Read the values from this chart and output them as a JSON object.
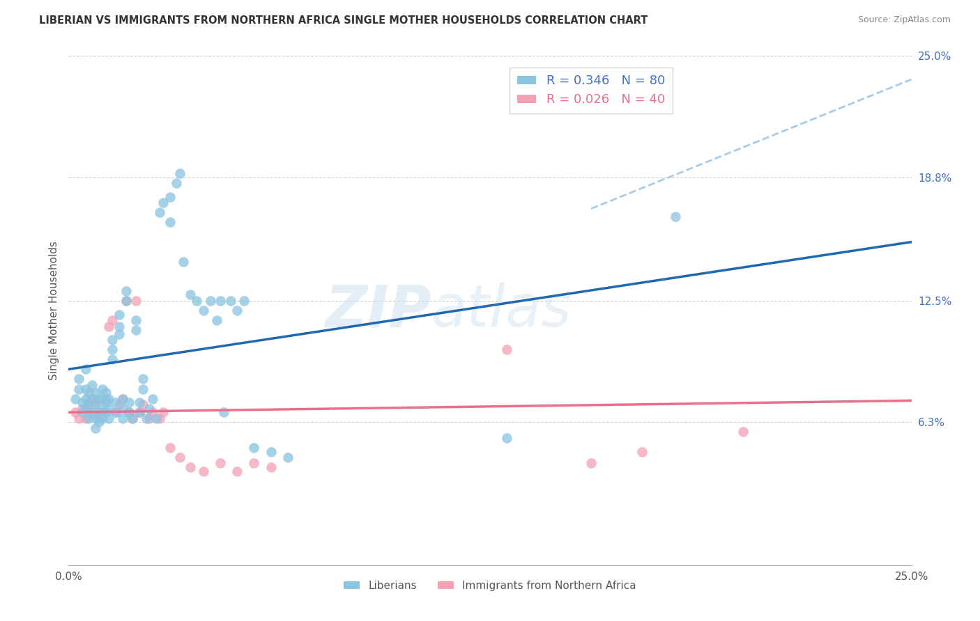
{
  "title": "LIBERIAN VS IMMIGRANTS FROM NORTHERN AFRICA SINGLE MOTHER HOUSEHOLDS CORRELATION CHART",
  "source": "Source: ZipAtlas.com",
  "ylabel": "Single Mother Households",
  "xlim": [
    0.0,
    0.25
  ],
  "ylim": [
    -0.01,
    0.25
  ],
  "ytick_labels": [
    "6.3%",
    "12.5%",
    "18.8%",
    "25.0%"
  ],
  "ytick_values": [
    0.063,
    0.125,
    0.188,
    0.25
  ],
  "legend_label_1": "R = 0.346   N = 80",
  "legend_label_2": "R = 0.026   N = 40",
  "legend_bottom_1": "Liberians",
  "legend_bottom_2": "Immigrants from Northern Africa",
  "color_blue": "#89c4e1",
  "color_pink": "#f4a0b5",
  "color_line_blue": "#2068b0",
  "color_line_pink": "#e8708a",
  "color_dashed": "#a8cce8",
  "watermark_zip": "ZIP",
  "watermark_atlas": "atlas",
  "bg_color": "#ffffff",
  "grid_color": "#cccccc",
  "blue_scatter_x": [
    0.002,
    0.003,
    0.003,
    0.004,
    0.004,
    0.005,
    0.005,
    0.005,
    0.005,
    0.006,
    0.006,
    0.006,
    0.007,
    0.007,
    0.007,
    0.008,
    0.008,
    0.008,
    0.008,
    0.009,
    0.009,
    0.009,
    0.01,
    0.01,
    0.01,
    0.01,
    0.011,
    0.011,
    0.011,
    0.012,
    0.012,
    0.012,
    0.013,
    0.013,
    0.013,
    0.014,
    0.014,
    0.015,
    0.015,
    0.015,
    0.016,
    0.016,
    0.016,
    0.017,
    0.017,
    0.018,
    0.018,
    0.019,
    0.02,
    0.02,
    0.021,
    0.021,
    0.022,
    0.022,
    0.023,
    0.024,
    0.025,
    0.026,
    0.027,
    0.028,
    0.03,
    0.03,
    0.032,
    0.033,
    0.034,
    0.036,
    0.038,
    0.04,
    0.042,
    0.044,
    0.045,
    0.046,
    0.048,
    0.05,
    0.052,
    0.055,
    0.06,
    0.065,
    0.13,
    0.18
  ],
  "blue_scatter_y": [
    0.075,
    0.08,
    0.085,
    0.068,
    0.073,
    0.07,
    0.075,
    0.08,
    0.09,
    0.065,
    0.072,
    0.078,
    0.068,
    0.075,
    0.082,
    0.06,
    0.065,
    0.072,
    0.078,
    0.063,
    0.068,
    0.075,
    0.065,
    0.07,
    0.075,
    0.08,
    0.068,
    0.073,
    0.078,
    0.065,
    0.07,
    0.075,
    0.095,
    0.1,
    0.105,
    0.068,
    0.073,
    0.108,
    0.112,
    0.118,
    0.065,
    0.07,
    0.075,
    0.125,
    0.13,
    0.068,
    0.073,
    0.065,
    0.11,
    0.115,
    0.068,
    0.073,
    0.08,
    0.085,
    0.065,
    0.07,
    0.075,
    0.065,
    0.17,
    0.175,
    0.165,
    0.178,
    0.185,
    0.19,
    0.145,
    0.128,
    0.125,
    0.12,
    0.125,
    0.115,
    0.125,
    0.068,
    0.125,
    0.12,
    0.125,
    0.05,
    0.048,
    0.045,
    0.055,
    0.168
  ],
  "pink_scatter_x": [
    0.002,
    0.003,
    0.004,
    0.005,
    0.005,
    0.006,
    0.006,
    0.007,
    0.008,
    0.008,
    0.009,
    0.01,
    0.011,
    0.012,
    0.013,
    0.014,
    0.015,
    0.016,
    0.017,
    0.018,
    0.019,
    0.02,
    0.021,
    0.022,
    0.024,
    0.025,
    0.027,
    0.028,
    0.03,
    0.033,
    0.036,
    0.04,
    0.045,
    0.05,
    0.055,
    0.06,
    0.13,
    0.155,
    0.17,
    0.2
  ],
  "pink_scatter_y": [
    0.068,
    0.065,
    0.07,
    0.065,
    0.07,
    0.068,
    0.073,
    0.075,
    0.068,
    0.073,
    0.065,
    0.068,
    0.075,
    0.112,
    0.115,
    0.068,
    0.072,
    0.075,
    0.125,
    0.068,
    0.065,
    0.125,
    0.068,
    0.072,
    0.065,
    0.068,
    0.065,
    0.068,
    0.05,
    0.045,
    0.04,
    0.038,
    0.042,
    0.038,
    0.042,
    0.04,
    0.1,
    0.042,
    0.048,
    0.058
  ],
  "blue_line_x0": 0.0,
  "blue_line_x1": 0.25,
  "blue_line_y0": 0.09,
  "blue_line_y1": 0.155,
  "pink_line_x0": 0.0,
  "pink_line_x1": 0.25,
  "pink_line_y0": 0.068,
  "pink_line_y1": 0.074,
  "dashed_line_x0": 0.155,
  "dashed_line_x1": 0.25,
  "dashed_line_y0": 0.172,
  "dashed_line_y1": 0.238
}
